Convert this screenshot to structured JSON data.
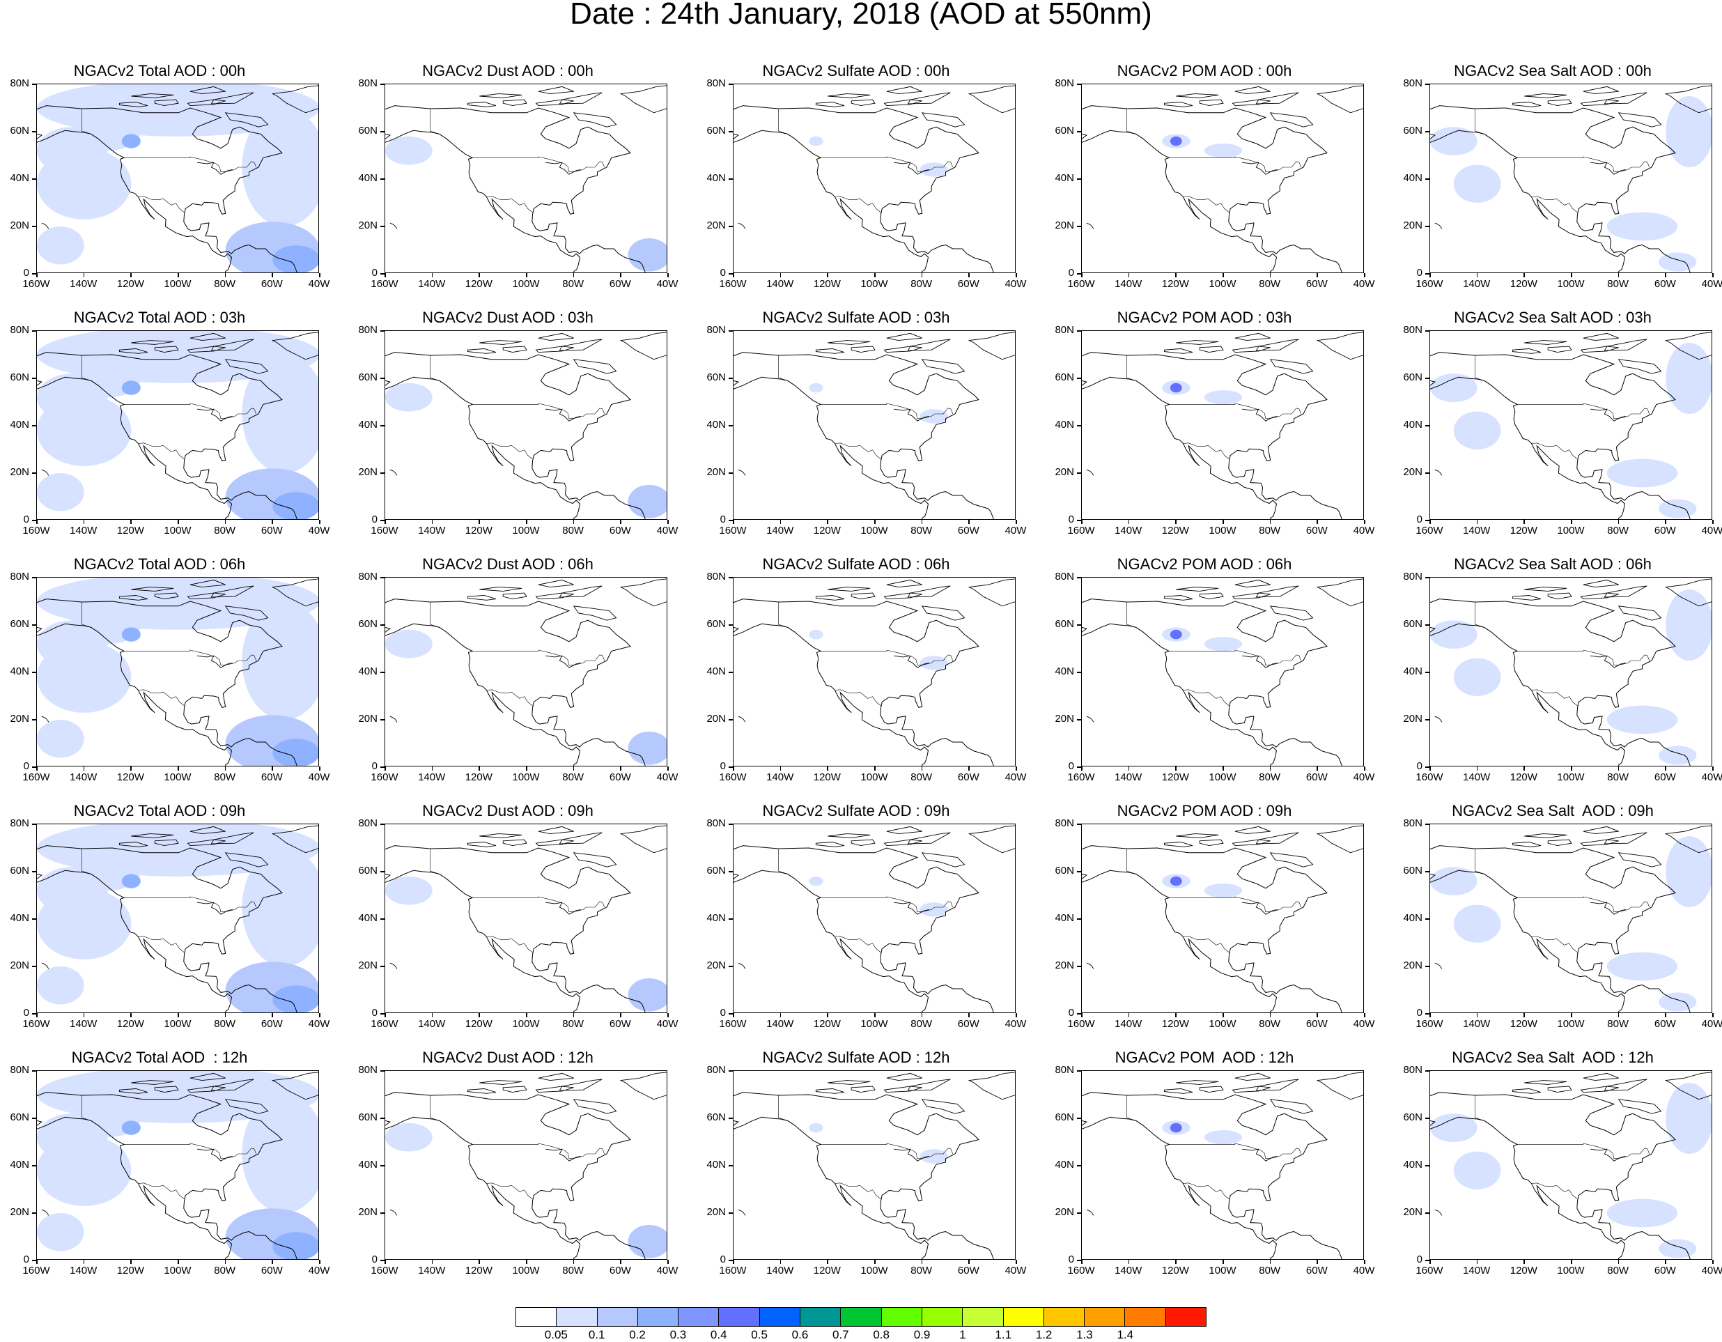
{
  "title": "Date : 24th January, 2018 (AOD at 550nm)",
  "y_labels": [
    "80N",
    "60N",
    "40N",
    "20N",
    "0"
  ],
  "x_labels": [
    "160W",
    "140W",
    "120W",
    "100W",
    "80W",
    "60W",
    "40W"
  ],
  "extent": {
    "lon_min": -160,
    "lon_max": -40,
    "lat_min": 0,
    "lat_max": 80
  },
  "panels": [
    {
      "title": "NGACv2 Total AOD : 00h",
      "species": "total",
      "hour": "00h"
    },
    {
      "title": "NGACv2 Dust AOD : 00h",
      "species": "dust",
      "hour": "00h"
    },
    {
      "title": "NGACv2 Sulfate AOD : 00h",
      "species": "sulfate",
      "hour": "00h"
    },
    {
      "title": "NGACv2 POM AOD : 00h",
      "species": "pom",
      "hour": "00h"
    },
    {
      "title": "NGACv2 Sea Salt AOD : 00h",
      "species": "seasalt",
      "hour": "00h"
    },
    {
      "title": "NGACv2 Total AOD : 03h",
      "species": "total",
      "hour": "03h"
    },
    {
      "title": "NGACv2 Dust AOD : 03h",
      "species": "dust",
      "hour": "03h"
    },
    {
      "title": "NGACv2 Sulfate AOD : 03h",
      "species": "sulfate",
      "hour": "03h"
    },
    {
      "title": "NGACv2 POM AOD : 03h",
      "species": "pom",
      "hour": "03h"
    },
    {
      "title": "NGACv2 Sea Salt AOD : 03h",
      "species": "seasalt",
      "hour": "03h"
    },
    {
      "title": "NGACv2 Total AOD : 06h",
      "species": "total",
      "hour": "06h"
    },
    {
      "title": "NGACv2 Dust AOD : 06h",
      "species": "dust",
      "hour": "06h"
    },
    {
      "title": "NGACv2 Sulfate AOD : 06h",
      "species": "sulfate",
      "hour": "06h"
    },
    {
      "title": "NGACv2 POM AOD : 06h",
      "species": "pom",
      "hour": "06h"
    },
    {
      "title": "NGACv2 Sea Salt AOD : 06h",
      "species": "seasalt",
      "hour": "06h"
    },
    {
      "title": "NGACv2 Total AOD : 09h",
      "species": "total",
      "hour": "09h"
    },
    {
      "title": "NGACv2 Dust AOD : 09h",
      "species": "dust",
      "hour": "09h"
    },
    {
      "title": "NGACv2 Sulfate AOD : 09h",
      "species": "sulfate",
      "hour": "09h"
    },
    {
      "title": "NGACv2 POM AOD : 09h",
      "species": "pom",
      "hour": "09h"
    },
    {
      "title": "NGACv2 Sea Salt  AOD : 09h",
      "species": "seasalt",
      "hour": "09h"
    },
    {
      "title": "NGACv2 Total AOD  : 12h",
      "species": "total",
      "hour": "12h"
    },
    {
      "title": "NGACv2 Dust AOD : 12h",
      "species": "dust",
      "hour": "12h"
    },
    {
      "title": "NGACv2 Sulfate AOD : 12h",
      "species": "sulfate",
      "hour": "12h"
    },
    {
      "title": "NGACv2 POM  AOD : 12h",
      "species": "pom",
      "hour": "12h"
    },
    {
      "title": "NGACv2 Sea Salt  AOD : 12h",
      "species": "seasalt",
      "hour": "12h"
    }
  ],
  "colorbar": {
    "colors": [
      "#ffffff",
      "#d6e2ff",
      "#b5c9ff",
      "#8eb2ff",
      "#7f96ff",
      "#6370ff",
      "#0063ff",
      "#009696",
      "#00c633",
      "#63ff00",
      "#96ff00",
      "#c6ff33",
      "#ffff00",
      "#ffc600",
      "#ffa000",
      "#ff7c00",
      "#ff1900"
    ],
    "labels": [
      "0.05",
      "0.1",
      "0.2",
      "0.3",
      "0.4",
      "0.5",
      "0.6",
      "0.7",
      "0.8",
      "0.9",
      "1",
      "1.1",
      "1.2",
      "1.3",
      "1.4"
    ]
  }
}
